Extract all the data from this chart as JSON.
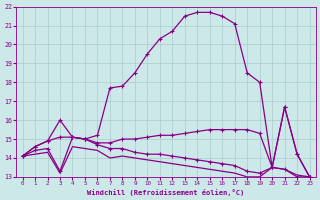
{
  "xlabel": "Windchill (Refroidissement éolien,°C)",
  "background_color": "#cde8e8",
  "grid_color": "#aacccc",
  "line_color": "#880088",
  "xlim": [
    -0.5,
    23.5
  ],
  "ylim": [
    13,
    22
  ],
  "yticks": [
    13,
    14,
    15,
    16,
    17,
    18,
    19,
    20,
    21,
    22
  ],
  "xticks": [
    0,
    1,
    2,
    3,
    4,
    5,
    6,
    7,
    8,
    9,
    10,
    11,
    12,
    13,
    14,
    15,
    16,
    17,
    18,
    19,
    20,
    21,
    22,
    23
  ],
  "series": [
    {
      "x": [
        0,
        1,
        2,
        3,
        4,
        5,
        6,
        7,
        8,
        9,
        10,
        11,
        12,
        13,
        14,
        15,
        16,
        17,
        18,
        19,
        20,
        21,
        22,
        23
      ],
      "y": [
        14.1,
        14.6,
        14.9,
        16.0,
        15.1,
        15.0,
        15.2,
        17.7,
        17.8,
        18.5,
        19.5,
        20.3,
        20.7,
        21.5,
        21.7,
        21.7,
        21.5,
        21.1,
        18.5,
        18.0,
        13.5,
        16.7,
        14.2,
        13.0
      ],
      "marker": "+",
      "lw": 0.9
    },
    {
      "x": [
        0,
        1,
        2,
        3,
        4,
        5,
        6,
        7,
        8,
        9,
        10,
        11,
        12,
        13,
        14,
        15,
        16,
        17,
        18,
        19,
        20,
        21,
        22,
        23
      ],
      "y": [
        14.1,
        14.6,
        14.9,
        15.1,
        15.1,
        15.0,
        14.8,
        14.8,
        15.0,
        15.0,
        15.1,
        15.2,
        15.2,
        15.3,
        15.4,
        15.5,
        15.5,
        15.5,
        15.5,
        15.3,
        13.5,
        16.7,
        14.2,
        13.0
      ],
      "marker": "+",
      "lw": 0.9
    },
    {
      "x": [
        0,
        1,
        2,
        3,
        4,
        5,
        6,
        7,
        8,
        9,
        10,
        11,
        12,
        13,
        14,
        15,
        16,
        17,
        18,
        19,
        20,
        21,
        22,
        23
      ],
      "y": [
        14.1,
        14.4,
        14.5,
        13.3,
        15.1,
        15.0,
        14.7,
        14.5,
        14.5,
        14.3,
        14.2,
        14.2,
        14.1,
        14.0,
        13.9,
        13.8,
        13.7,
        13.6,
        13.3,
        13.2,
        13.5,
        13.4,
        13.0,
        13.0
      ],
      "marker": "+",
      "lw": 0.9
    },
    {
      "x": [
        0,
        1,
        2,
        3,
        4,
        5,
        6,
        7,
        8,
        9,
        10,
        11,
        12,
        13,
        14,
        15,
        16,
        17,
        18,
        19,
        20,
        21,
        22,
        23
      ],
      "y": [
        14.1,
        14.2,
        14.3,
        13.2,
        14.6,
        14.5,
        14.4,
        14.0,
        14.1,
        14.0,
        13.9,
        13.8,
        13.7,
        13.6,
        13.5,
        13.4,
        13.3,
        13.2,
        13.0,
        13.0,
        13.5,
        13.4,
        13.1,
        13.0
      ],
      "marker": null,
      "lw": 0.9
    }
  ]
}
